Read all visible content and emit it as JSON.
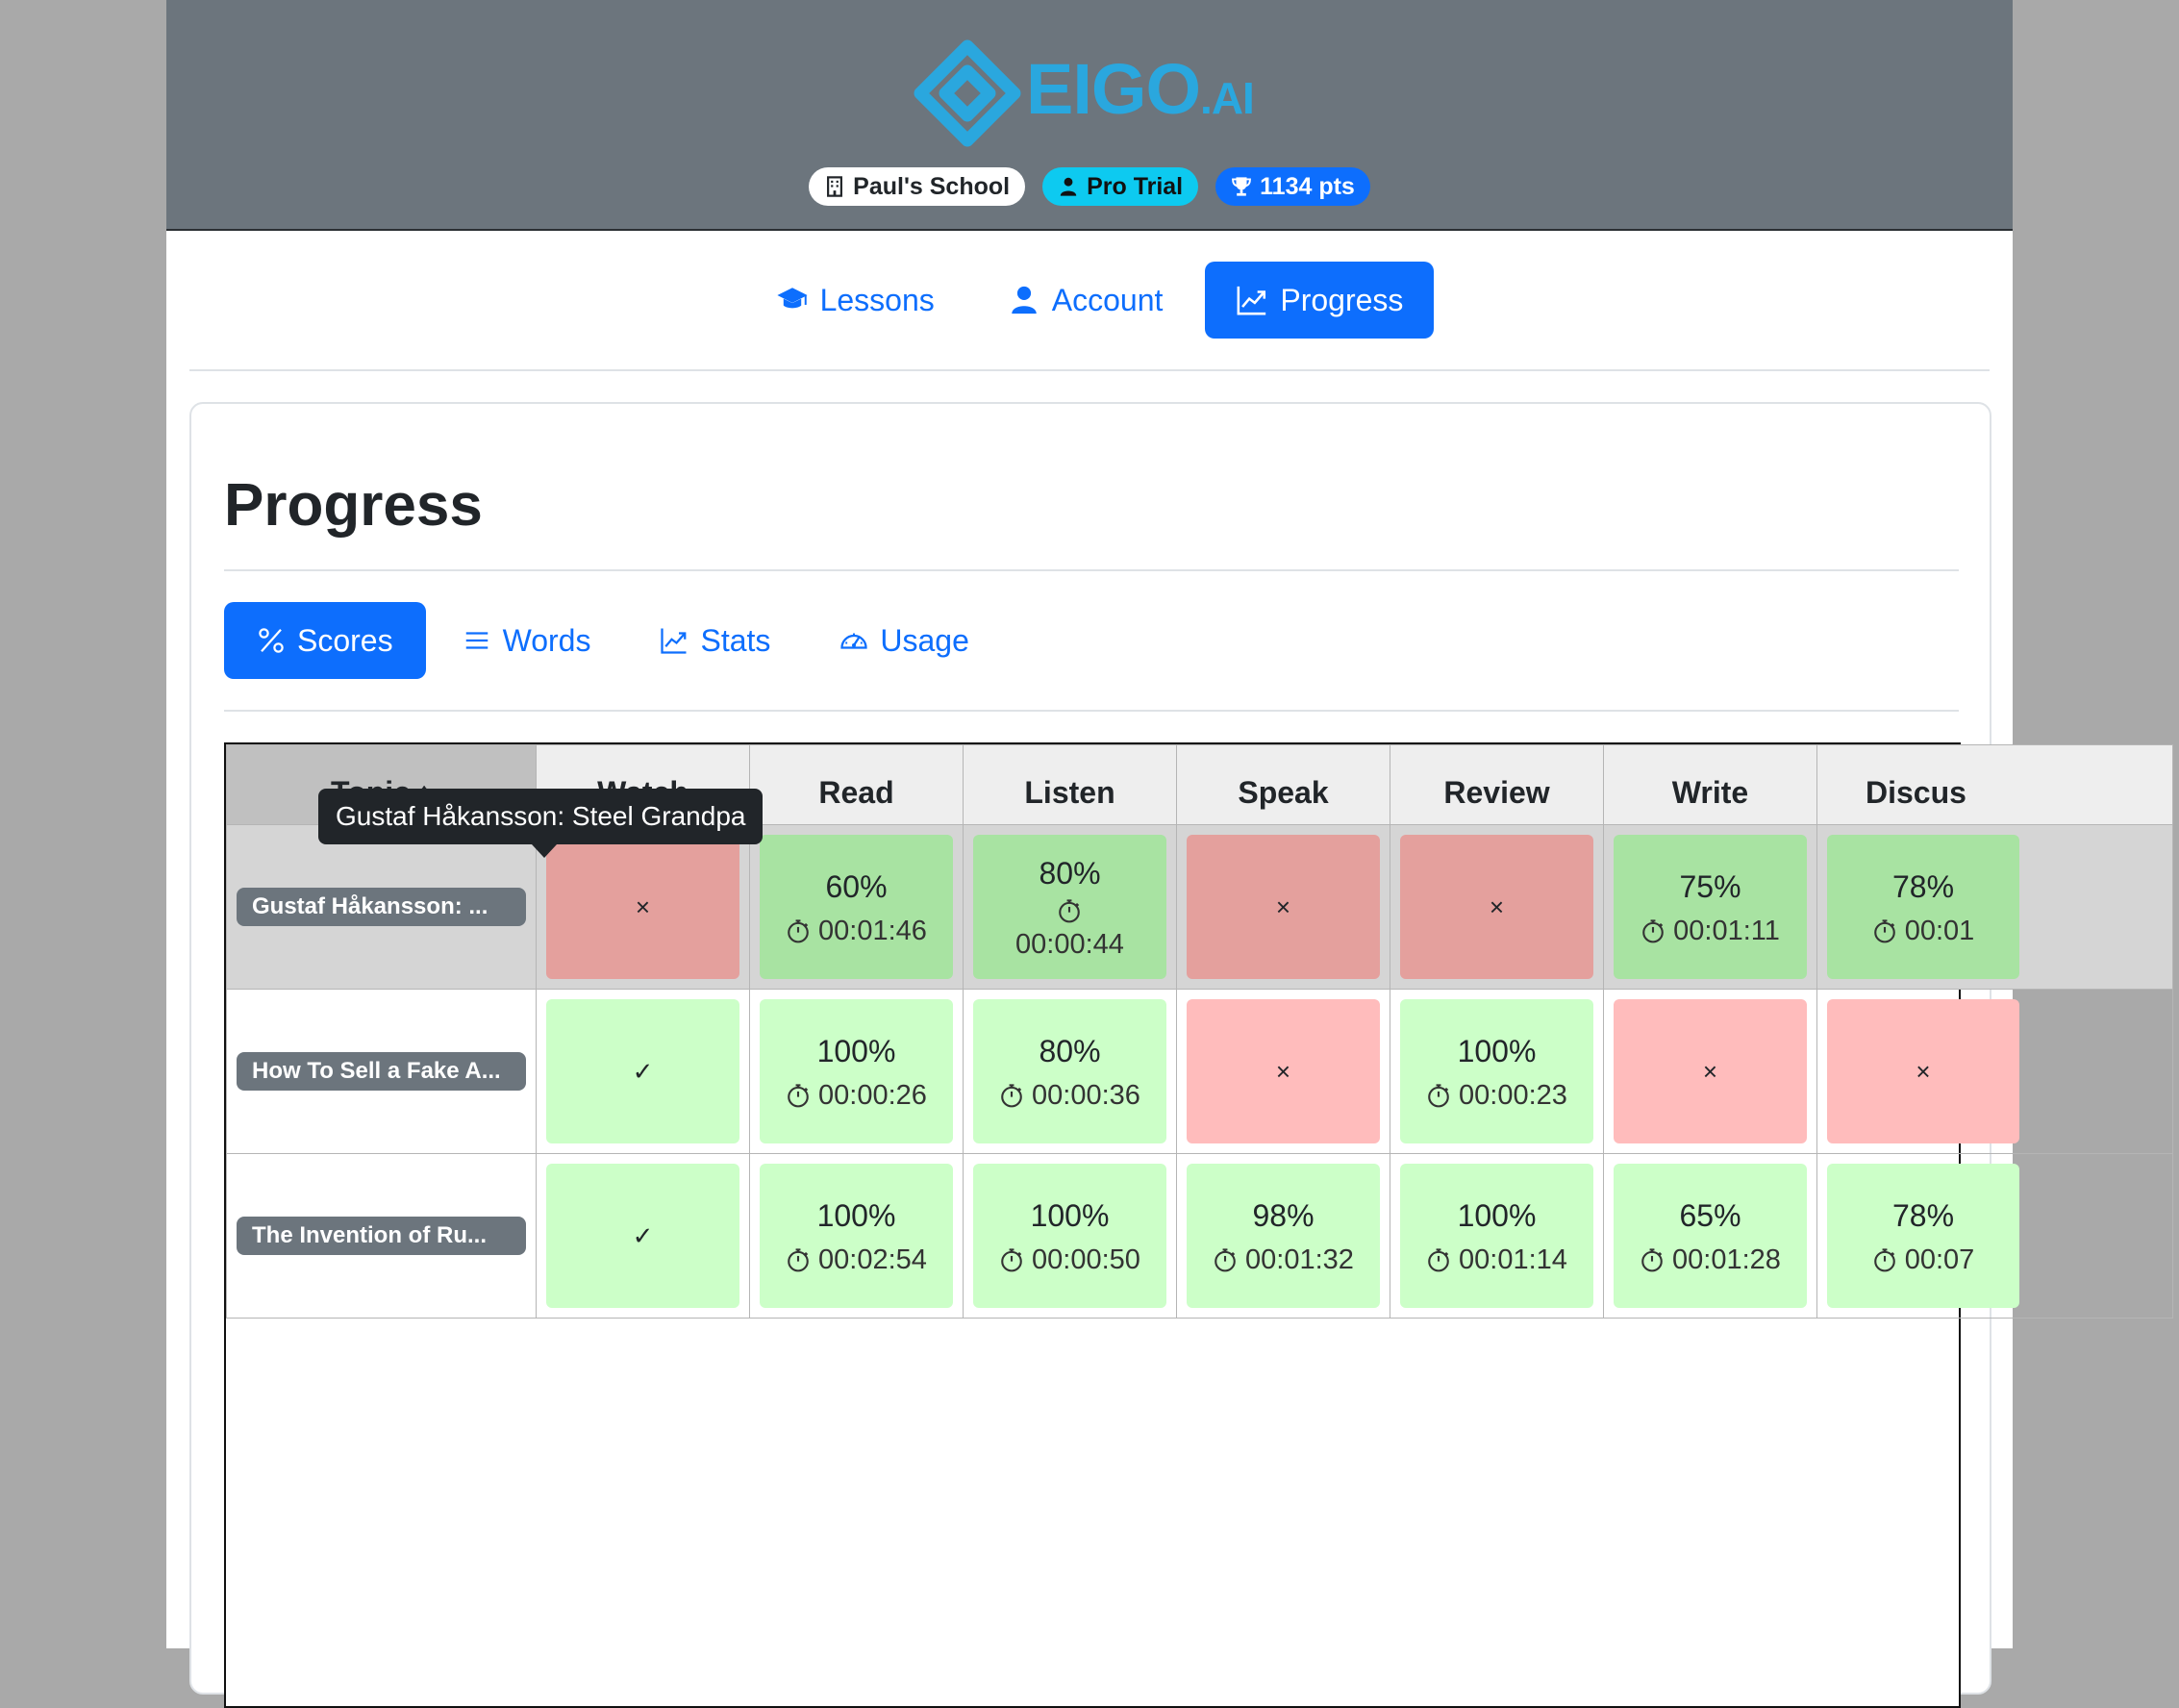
{
  "header": {
    "logo_text": "EIGO",
    "logo_suffix": ".AI",
    "badges": {
      "school": "Paul's School",
      "trial": "Pro Trial",
      "points": "1134 pts"
    }
  },
  "main_nav": {
    "lessons": "Lessons",
    "account": "Account",
    "progress": "Progress"
  },
  "page": {
    "title": "Progress"
  },
  "sub_nav": {
    "scores": "Scores",
    "words": "Words",
    "stats": "Stats",
    "usage": "Usage"
  },
  "table": {
    "headers": [
      "Topic",
      "Watch",
      "Read",
      "Listen",
      "Speak",
      "Review",
      "Write",
      "Discus"
    ],
    "sort_indicator": "↑",
    "rows": [
      {
        "topic": "Gustaf Håkansson: ...",
        "cells": [
          {
            "status": "fail",
            "mark": "×"
          },
          {
            "status": "pass",
            "pct": "60%",
            "time": "00:01:46"
          },
          {
            "status": "pass",
            "pct": "80%",
            "time": "00:00:44"
          },
          {
            "status": "fail",
            "mark": "×"
          },
          {
            "status": "fail",
            "mark": "×"
          },
          {
            "status": "pass",
            "pct": "75%",
            "time": "00:01:11"
          },
          {
            "status": "pass",
            "pct": "78%",
            "time": "00:01"
          }
        ]
      },
      {
        "topic": "How To Sell a Fake A...",
        "cells": [
          {
            "status": "pass",
            "mark": "✓"
          },
          {
            "status": "pass",
            "pct": "100%",
            "time": "00:00:26"
          },
          {
            "status": "pass",
            "pct": "80%",
            "time": "00:00:36"
          },
          {
            "status": "fail",
            "mark": "×"
          },
          {
            "status": "pass",
            "pct": "100%",
            "time": "00:00:23"
          },
          {
            "status": "fail",
            "mark": "×"
          },
          {
            "status": "fail",
            "mark": "×"
          }
        ]
      },
      {
        "topic": "The Invention of Ru...",
        "cells": [
          {
            "status": "pass",
            "mark": "✓"
          },
          {
            "status": "pass",
            "pct": "100%",
            "time": "00:02:54"
          },
          {
            "status": "pass",
            "pct": "100%",
            "time": "00:00:50"
          },
          {
            "status": "pass",
            "pct": "98%",
            "time": "00:01:32"
          },
          {
            "status": "pass",
            "pct": "100%",
            "time": "00:01:14"
          },
          {
            "status": "pass",
            "pct": "65%",
            "time": "00:01:28"
          },
          {
            "status": "pass",
            "pct": "78%",
            "time": "00:07"
          }
        ]
      }
    ]
  },
  "tooltip": {
    "text": "Gustaf Håkansson: Steel Grandpa"
  },
  "colors": {
    "primary": "#0d6efd",
    "header_bg": "#6c757d",
    "logo": "#2aa7de",
    "pass": "#ccffc8",
    "fail": "#ffbcbc"
  }
}
